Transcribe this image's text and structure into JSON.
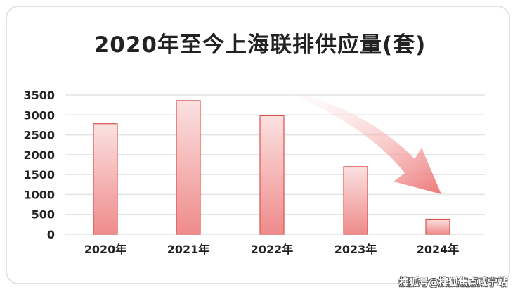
{
  "chart_data": {
    "type": "bar",
    "title": "2020年至今上海联排供应量(套)",
    "categories": [
      "2020年",
      "2021年",
      "2022年",
      "2023年",
      "2024年"
    ],
    "values": [
      2780,
      3360,
      2980,
      1700,
      380
    ],
    "ylim": [
      0,
      3500
    ],
    "yticks": [
      "0",
      "500",
      "1000",
      "1500",
      "2000",
      "2500",
      "3000",
      "3500"
    ],
    "ytick_values": [
      0,
      500,
      1000,
      1500,
      2000,
      2500,
      3000,
      3500
    ],
    "grid": true,
    "colors": {
      "bar_top": "#fbe1e1",
      "bar_bottom": "#ef8b8b",
      "bar_stroke": "#d9534f",
      "grid": "#e3e3e3",
      "arrow_start": "#fdf0f0",
      "arrow_end": "#ec6a6a"
    }
  },
  "watermark": "搜狐号@搜狐焦点咸宁站"
}
